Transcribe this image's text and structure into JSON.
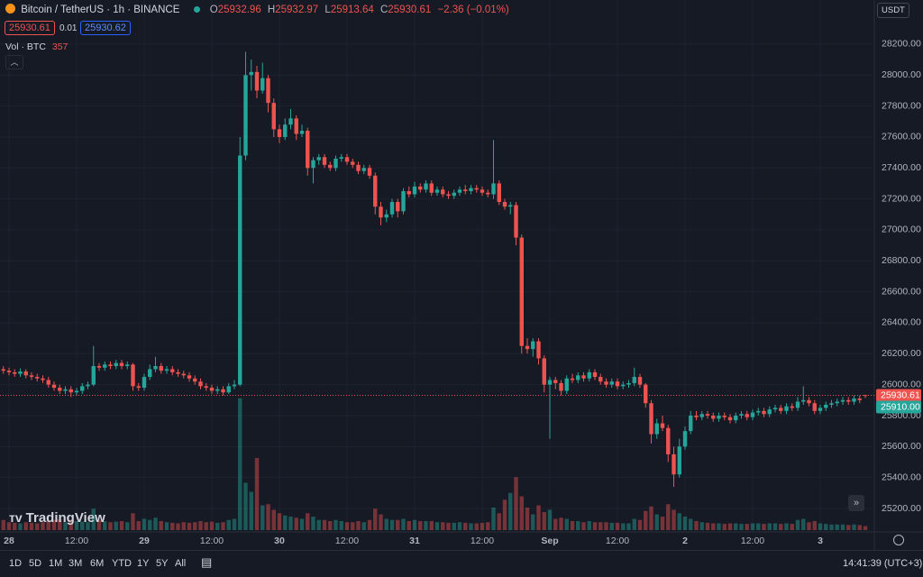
{
  "header": {
    "symbol": "Bitcoin / TetherUS · 1h · BINANCE",
    "o_label": "O",
    "h_label": "H",
    "l_label": "L",
    "c_label": "C",
    "change": "−2.36 (−0.01%)",
    "sell_price": "25930.61",
    "spread": "0.01",
    "buy_price": "25930.62",
    "volume_label": "Vol · BTC"
  },
  "currency": "USDT",
  "logo": "TradingView",
  "toolbar": {
    "ranges": [
      "1D",
      "5D",
      "1M",
      "3M",
      "6M",
      "YTD",
      "1Y",
      "5Y",
      "All"
    ],
    "clock": "14:41:39 (UTC+3)"
  },
  "chart_data": {
    "type": "candlestick",
    "bid_label": "25910.00",
    "xlim": [
      -1.6,
      153.6
    ],
    "xticks": [
      {
        "value": 0,
        "label": "28"
      },
      {
        "value": 12,
        "label": "12:00"
      },
      {
        "value": 24,
        "label": "29"
      },
      {
        "value": 36,
        "label": "12:00"
      },
      {
        "value": 48,
        "label": "30"
      },
      {
        "value": 60,
        "label": "12:00"
      },
      {
        "value": 72,
        "label": "31"
      },
      {
        "value": 84,
        "label": "12:00"
      },
      {
        "value": 96,
        "label": "Sep"
      },
      {
        "value": 108,
        "label": "12:00"
      },
      {
        "value": 120,
        "label": "2"
      },
      {
        "value": 132,
        "label": "12:00"
      },
      {
        "value": 144,
        "label": "3"
      }
    ],
    "ylim": [
      25048.5,
      28485
    ],
    "yticks": [
      {
        "value": 25200,
        "label": "25200.00"
      },
      {
        "value": 25400,
        "label": "25400.00"
      },
      {
        "value": 25600,
        "label": "25600.00"
      },
      {
        "value": 25800,
        "label": "25800.00"
      },
      {
        "value": 26000,
        "label": "26000.00"
      },
      {
        "value": 26200,
        "label": "26200.00"
      },
      {
        "value": 26400,
        "label": "26400.00"
      },
      {
        "value": 26600,
        "label": "26600.00"
      },
      {
        "value": 26800,
        "label": "26800.00"
      },
      {
        "value": 27000,
        "label": "27000.00"
      },
      {
        "value": 27200,
        "label": "27200.00"
      },
      {
        "value": 27400,
        "label": "27400.00"
      },
      {
        "value": 27600,
        "label": "27600.00"
      },
      {
        "value": 27800,
        "label": "27800.00"
      },
      {
        "value": 28000,
        "label": "28000.00"
      },
      {
        "value": 28200,
        "label": "28200.00"
      }
    ],
    "volume_ylim": [
      0,
      12000
    ],
    "up_color": "#26a69a",
    "down_color": "#ef5350",
    "candles": [
      [
        -1,
        26100,
        26120,
        26070,
        26090,
        900
      ],
      [
        0,
        26090,
        26110,
        26060,
        26080,
        700
      ],
      [
        1,
        26080,
        26100,
        26050,
        26070,
        650
      ],
      [
        2,
        26070,
        26105,
        26050,
        26085,
        600
      ],
      [
        3,
        26085,
        26100,
        26040,
        26060,
        700
      ],
      [
        4,
        26060,
        26080,
        26030,
        26050,
        650
      ],
      [
        5,
        26050,
        26070,
        26020,
        26040,
        600
      ],
      [
        6,
        26040,
        26060,
        26010,
        26030,
        700
      ],
      [
        7,
        26030,
        26050,
        25980,
        26000,
        800
      ],
      [
        8,
        26000,
        26020,
        25960,
        25980,
        900
      ],
      [
        9,
        25980,
        26000,
        25940,
        25960,
        950
      ],
      [
        10,
        25960,
        25990,
        25940,
        25970,
        700
      ],
      [
        11,
        25970,
        25990,
        25920,
        25950,
        900
      ],
      [
        12,
        25950,
        25980,
        25930,
        25960,
        800
      ],
      [
        13,
        25960,
        26010,
        25940,
        25990,
        750
      ],
      [
        14,
        25990,
        26020,
        25970,
        26000,
        700
      ],
      [
        15,
        26000,
        26250,
        25990,
        26120,
        1900
      ],
      [
        16,
        26120,
        26140,
        26090,
        26110,
        900
      ],
      [
        17,
        26110,
        26150,
        26090,
        26130,
        800
      ],
      [
        18,
        26130,
        26150,
        26100,
        26120,
        700
      ],
      [
        19,
        26120,
        26160,
        26100,
        26140,
        750
      ],
      [
        20,
        26140,
        26160,
        26100,
        26120,
        800
      ],
      [
        21,
        26120,
        26150,
        26100,
        26130,
        700
      ],
      [
        22,
        26130,
        26140,
        25960,
        25990,
        1500
      ],
      [
        23,
        25990,
        26010,
        25960,
        25980,
        800
      ],
      [
        24,
        25980,
        26070,
        25960,
        26050,
        1000
      ],
      [
        25,
        26050,
        26130,
        26030,
        26100,
        900
      ],
      [
        26,
        26100,
        26180,
        26080,
        26120,
        1100
      ],
      [
        27,
        26120,
        26140,
        26070,
        26090,
        800
      ],
      [
        28,
        26090,
        26120,
        26070,
        26100,
        700
      ],
      [
        29,
        26100,
        26120,
        26060,
        26080,
        650
      ],
      [
        30,
        26080,
        26100,
        26050,
        26070,
        600
      ],
      [
        31,
        26070,
        26090,
        26040,
        26060,
        700
      ],
      [
        32,
        26060,
        26080,
        26020,
        26040,
        650
      ],
      [
        33,
        26040,
        26060,
        26000,
        26020,
        700
      ],
      [
        34,
        26020,
        26040,
        25970,
        25990,
        800
      ],
      [
        35,
        25990,
        26010,
        25960,
        25980,
        700
      ],
      [
        36,
        25980,
        26000,
        25940,
        25960,
        750
      ],
      [
        37,
        25960,
        25990,
        25940,
        25970,
        650
      ],
      [
        38,
        25970,
        25990,
        25930,
        25950,
        700
      ],
      [
        39,
        25950,
        26010,
        25940,
        25990,
        900
      ],
      [
        40,
        25990,
        26030,
        25970,
        26000,
        1000
      ],
      [
        41,
        26000,
        27600,
        25990,
        27480,
        11700
      ],
      [
        42,
        27480,
        28150,
        27450,
        28000,
        4200
      ],
      [
        43,
        28000,
        28100,
        27900,
        28020,
        3400
      ],
      [
        44,
        28020,
        28060,
        27850,
        27900,
        6400
      ],
      [
        45,
        27900,
        28080,
        27880,
        27980,
        2200
      ],
      [
        46,
        27980,
        28000,
        27760,
        27820,
        2300
      ],
      [
        47,
        27820,
        27850,
        27600,
        27650,
        1800
      ],
      [
        48,
        27650,
        27680,
        27560,
        27600,
        1500
      ],
      [
        49,
        27600,
        27720,
        27580,
        27680,
        1300
      ],
      [
        50,
        27680,
        27780,
        27650,
        27720,
        1200
      ],
      [
        51,
        27720,
        27740,
        27580,
        27620,
        1100
      ],
      [
        52,
        27620,
        27680,
        27600,
        27640,
        1000
      ],
      [
        53,
        27640,
        27660,
        27350,
        27400,
        1500
      ],
      [
        54,
        27400,
        27470,
        27300,
        27450,
        1200
      ],
      [
        55,
        27450,
        27490,
        27420,
        27470,
        900
      ],
      [
        56,
        27470,
        27490,
        27400,
        27420,
        900
      ],
      [
        57,
        27420,
        27440,
        27380,
        27400,
        800
      ],
      [
        58,
        27400,
        27480,
        27380,
        27460,
        900
      ],
      [
        59,
        27460,
        27490,
        27440,
        27470,
        800
      ],
      [
        60,
        27470,
        27490,
        27420,
        27440,
        700
      ],
      [
        61,
        27440,
        27460,
        27400,
        27420,
        700
      ],
      [
        62,
        27420,
        27440,
        27360,
        27380,
        800
      ],
      [
        63,
        27380,
        27420,
        27360,
        27400,
        700
      ],
      [
        64,
        27400,
        27420,
        27330,
        27350,
        900
      ],
      [
        65,
        27350,
        27370,
        27100,
        27150,
        1900
      ],
      [
        66,
        27150,
        27180,
        27030,
        27080,
        1400
      ],
      [
        67,
        27080,
        27130,
        27050,
        27100,
        1000
      ],
      [
        68,
        27100,
        27200,
        27080,
        27180,
        900
      ],
      [
        69,
        27180,
        27200,
        27080,
        27120,
        900
      ],
      [
        70,
        27120,
        27270,
        27100,
        27250,
        1000
      ],
      [
        71,
        27250,
        27280,
        27210,
        27230,
        800
      ],
      [
        72,
        27230,
        27310,
        27210,
        27280,
        900
      ],
      [
        73,
        27280,
        27300,
        27240,
        27260,
        800
      ],
      [
        74,
        27260,
        27320,
        27240,
        27300,
        800
      ],
      [
        75,
        27300,
        27320,
        27220,
        27240,
        800
      ],
      [
        76,
        27240,
        27280,
        27220,
        27260,
        700
      ],
      [
        77,
        27260,
        27280,
        27210,
        27230,
        700
      ],
      [
        78,
        27230,
        27250,
        27200,
        27220,
        650
      ],
      [
        79,
        27220,
        27260,
        27200,
        27240,
        650
      ],
      [
        80,
        27240,
        27280,
        27220,
        27260,
        700
      ],
      [
        81,
        27260,
        27290,
        27230,
        27250,
        650
      ],
      [
        82,
        27250,
        27290,
        27230,
        27270,
        600
      ],
      [
        83,
        27270,
        27290,
        27240,
        27260,
        600
      ],
      [
        84,
        27260,
        27280,
        27220,
        27240,
        650
      ],
      [
        85,
        27240,
        27260,
        27210,
        27230,
        700
      ],
      [
        86,
        27230,
        27580,
        27200,
        27300,
        2000
      ],
      [
        87,
        27300,
        27320,
        27160,
        27180,
        1500
      ],
      [
        88,
        27180,
        27200,
        27130,
        27150,
        2700
      ],
      [
        89,
        27150,
        27180,
        27100,
        27160,
        3300
      ],
      [
        90,
        27160,
        27180,
        26900,
        26950,
        4700
      ],
      [
        91,
        26950,
        26970,
        26200,
        26250,
        3000
      ],
      [
        92,
        26250,
        26300,
        26200,
        26230,
        2000
      ],
      [
        93,
        26230,
        26300,
        26180,
        26280,
        1400
      ],
      [
        94,
        26280,
        26300,
        26130,
        26170,
        2200
      ],
      [
        95,
        26170,
        26190,
        25950,
        26000,
        1600
      ],
      [
        96,
        26000,
        26050,
        25650,
        26030,
        1800
      ],
      [
        97,
        26030,
        26050,
        25970,
        26010,
        1000
      ],
      [
        98,
        26010,
        26030,
        25930,
        25960,
        1100
      ],
      [
        99,
        25960,
        26060,
        25940,
        26040,
        1000
      ],
      [
        100,
        26040,
        26070,
        26010,
        26030,
        800
      ],
      [
        101,
        26030,
        26080,
        26010,
        26060,
        800
      ],
      [
        102,
        26060,
        26080,
        26020,
        26040,
        700
      ],
      [
        103,
        26040,
        26100,
        26020,
        26080,
        800
      ],
      [
        104,
        26080,
        26100,
        26030,
        26050,
        700
      ],
      [
        105,
        26050,
        26070,
        26000,
        26020,
        700
      ],
      [
        106,
        26020,
        26040,
        25980,
        26000,
        700
      ],
      [
        107,
        26000,
        26040,
        25980,
        26020,
        650
      ],
      [
        108,
        26020,
        26040,
        25970,
        25990,
        650
      ],
      [
        109,
        25990,
        26020,
        25970,
        26000,
        600
      ],
      [
        110,
        26000,
        26030,
        25980,
        26010,
        600
      ],
      [
        111,
        26010,
        26110,
        25990,
        26050,
        1000
      ],
      [
        112,
        26050,
        26070,
        25980,
        26000,
        900
      ],
      [
        113,
        26000,
        26010,
        25850,
        25880,
        1700
      ],
      [
        114,
        25880,
        25900,
        25620,
        25680,
        2100
      ],
      [
        115,
        25680,
        25780,
        25650,
        25750,
        1400
      ],
      [
        116,
        25750,
        25800,
        25700,
        25720,
        1200
      ],
      [
        117,
        25720,
        25740,
        25500,
        25550,
        2300
      ],
      [
        118,
        25550,
        25600,
        25340,
        25420,
        1800
      ],
      [
        119,
        25420,
        25650,
        25400,
        25600,
        1500
      ],
      [
        120,
        25600,
        25730,
        25580,
        25700,
        1200
      ],
      [
        121,
        25700,
        25830,
        25680,
        25800,
        1000
      ],
      [
        122,
        25800,
        25830,
        25770,
        25790,
        800
      ],
      [
        123,
        25790,
        25830,
        25770,
        25810,
        700
      ],
      [
        124,
        25810,
        25830,
        25780,
        25800,
        650
      ],
      [
        125,
        25800,
        25820,
        25760,
        25780,
        600
      ],
      [
        126,
        25780,
        25820,
        25760,
        25800,
        600
      ],
      [
        127,
        25800,
        25820,
        25770,
        25790,
        550
      ],
      [
        128,
        25790,
        25810,
        25750,
        25770,
        600
      ],
      [
        129,
        25770,
        25820,
        25750,
        25800,
        600
      ],
      [
        130,
        25800,
        25830,
        25780,
        25810,
        550
      ],
      [
        131,
        25810,
        25830,
        25770,
        25790,
        550
      ],
      [
        132,
        25790,
        25840,
        25770,
        25820,
        600
      ],
      [
        133,
        25820,
        25850,
        25800,
        25830,
        600
      ],
      [
        134,
        25830,
        25850,
        25790,
        25810,
        550
      ],
      [
        135,
        25810,
        25860,
        25790,
        25840,
        600
      ],
      [
        136,
        25840,
        25870,
        25820,
        25850,
        600
      ],
      [
        137,
        25850,
        25870,
        25810,
        25830,
        550
      ],
      [
        138,
        25830,
        25880,
        25810,
        25860,
        600
      ],
      [
        139,
        25860,
        25880,
        25830,
        25850,
        550
      ],
      [
        140,
        25850,
        25920,
        25830,
        25890,
        900
      ],
      [
        141,
        25890,
        25990,
        25870,
        25900,
        1000
      ],
      [
        142,
        25900,
        25920,
        25860,
        25880,
        700
      ],
      [
        143,
        25880,
        25900,
        25810,
        25830,
        800
      ],
      [
        144,
        25830,
        25870,
        25810,
        25850,
        600
      ],
      [
        145,
        25850,
        25890,
        25830,
        25870,
        550
      ],
      [
        146,
        25870,
        25900,
        25850,
        25880,
        500
      ],
      [
        147,
        25880,
        25910,
        25860,
        25890,
        500
      ],
      [
        148,
        25890,
        25920,
        25870,
        25900,
        500
      ],
      [
        149,
        25900,
        25920,
        25870,
        25890,
        450
      ],
      [
        150,
        25890,
        25930,
        25870,
        25910,
        500
      ],
      [
        151,
        25910,
        25930,
        25880,
        25900,
        450
      ],
      [
        152,
        25932.96,
        25932.97,
        25913.64,
        25930.61,
        357
      ]
    ]
  }
}
